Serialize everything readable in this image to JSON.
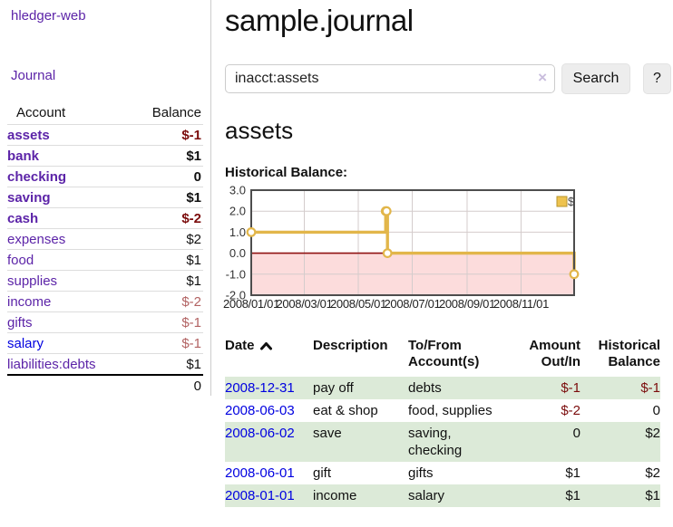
{
  "app": {
    "brand": "hledger-web",
    "nav_journal": "Journal"
  },
  "sidebar": {
    "table": {
      "account_header": "Account",
      "balance_header": "Balance",
      "rows": [
        {
          "account": "assets",
          "balance": "$-1"
        },
        {
          "account": "bank",
          "balance": "$1"
        },
        {
          "account": "checking",
          "balance": "0"
        },
        {
          "account": "saving",
          "balance": "$1"
        },
        {
          "account": "cash",
          "balance": "$-2"
        },
        {
          "account": "expenses",
          "balance": "$2"
        },
        {
          "account": "food",
          "balance": "$1"
        },
        {
          "account": "supplies",
          "balance": "$1"
        },
        {
          "account": "income",
          "balance": "$-2"
        },
        {
          "account": "gifts",
          "balance": "$-1"
        },
        {
          "account": "salary",
          "balance": "$-1"
        },
        {
          "account": "liabilities:debts",
          "balance": "$1"
        }
      ],
      "total": "0"
    }
  },
  "header": {
    "title": "sample.journal"
  },
  "search": {
    "value": "inacct:assets",
    "clear_icon": "×",
    "button_label": "Search",
    "help_label": "?"
  },
  "account_page": {
    "heading": "assets",
    "chart_label": "Historical Balance:"
  },
  "chart_data": {
    "type": "line",
    "title": "Historical Balance",
    "step": true,
    "series": [
      {
        "name": "$",
        "points": [
          [
            "2008-01-01",
            1
          ],
          [
            "2008-06-01",
            2
          ],
          [
            "2008-06-02",
            2
          ],
          [
            "2008-06-03",
            0
          ],
          [
            "2008-12-31",
            -1
          ]
        ]
      }
    ],
    "x_range": [
      "2008-01-01",
      "2008-12-31"
    ],
    "x_ticks": [
      "2008/01/01",
      "2008/03/01",
      "2008/05/01",
      "2008/07/01",
      "2008/09/01",
      "2008/11/01"
    ],
    "y_ticks": [
      3.0,
      2.0,
      1.0,
      0.0,
      -1.0,
      -2.0
    ],
    "ylim": [
      -2,
      3
    ],
    "legend": "$",
    "legend_position": "top-right",
    "grid": true,
    "colors": {
      "line": "#e2b64a",
      "marker_fill": "#ffffff",
      "negative_fill": "#fcdcdc",
      "zero_line": "#8f1212",
      "border": "#4d4d4d",
      "grid": "#d4cccc",
      "legend_fill": "#eec34f",
      "legend_stroke": "#b8962e"
    }
  },
  "register": {
    "headers": {
      "date": "Date",
      "description": "Description",
      "accounts": "To/From\nAccount(s)",
      "amount": "Amount\nOut/In",
      "balance": "Historical\nBalance"
    },
    "rows": [
      {
        "date": "2008-12-31",
        "description": "pay off",
        "accounts": "debts",
        "amount": "$-1",
        "balance": "$-1"
      },
      {
        "date": "2008-06-03",
        "description": "eat & shop",
        "accounts": "food, supplies",
        "amount": "$-2",
        "balance": "0"
      },
      {
        "date": "2008-06-02",
        "description": "save",
        "accounts": "saving,\nchecking",
        "amount": "0",
        "balance": "$2"
      },
      {
        "date": "2008-06-01",
        "description": "gift",
        "accounts": "gifts",
        "amount": "$1",
        "balance": "$2"
      },
      {
        "date": "2008-01-01",
        "description": "income",
        "accounts": "salary",
        "amount": "$1",
        "balance": "$1"
      }
    ]
  }
}
